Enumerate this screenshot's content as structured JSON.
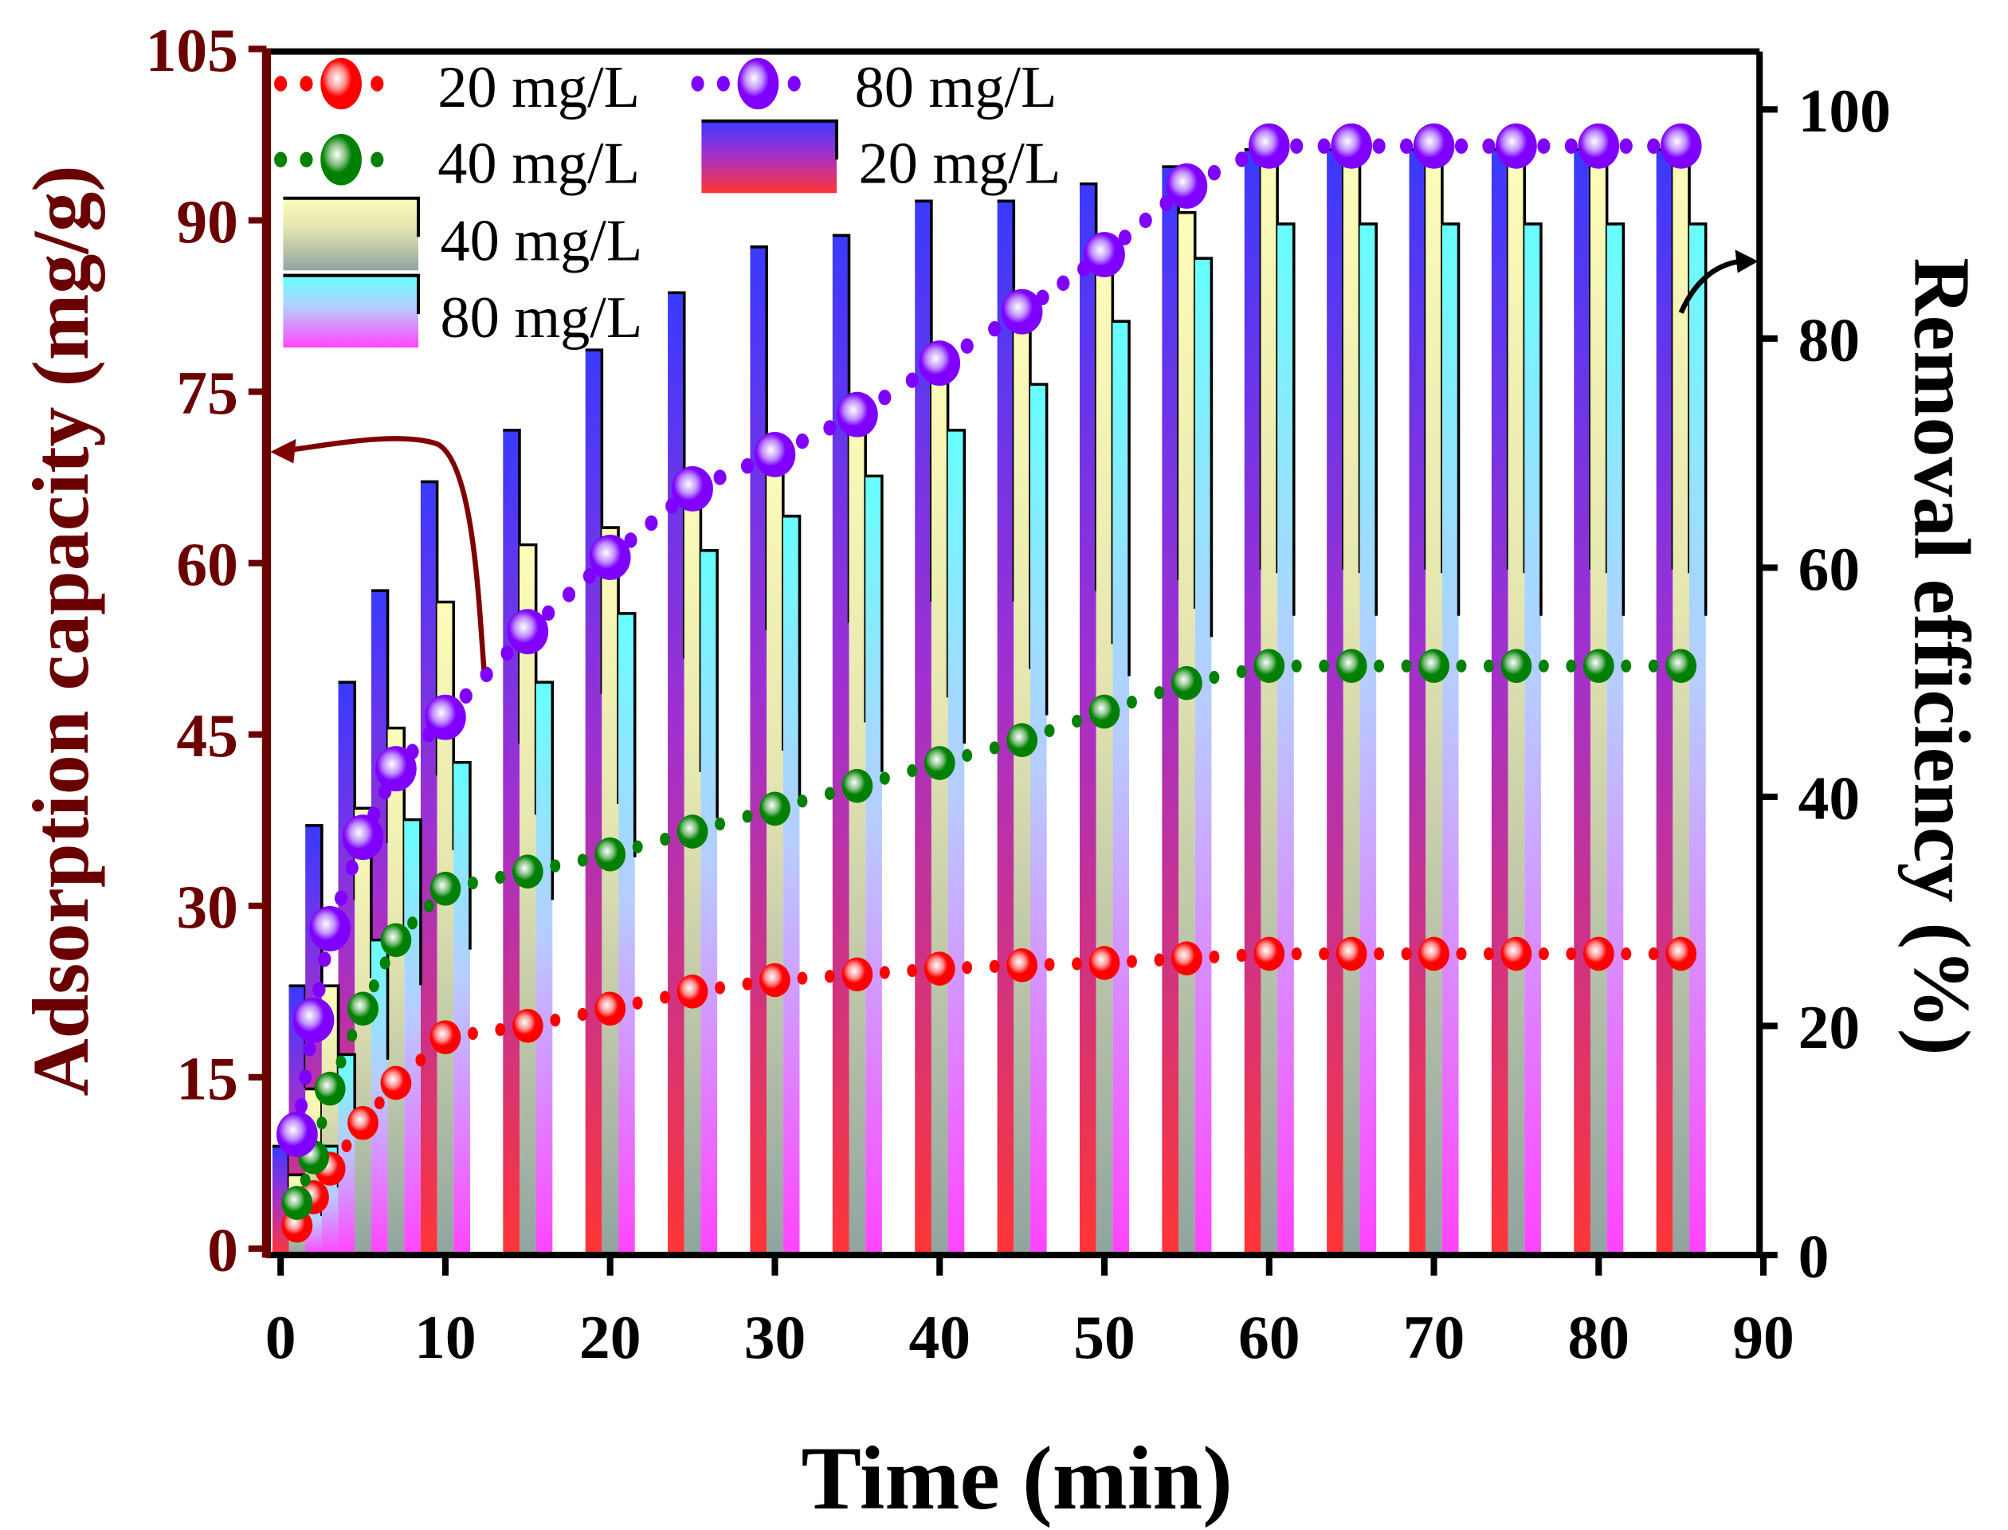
{
  "chart_data": {
    "type": "bar+scatter",
    "xlabel": "Time (min)",
    "ylabel_left": "Adsorption capacity (mg/g)",
    "ylabel_right": "Removal efficiency (%)",
    "xlim": [
      0,
      90
    ],
    "ylim_left": [
      0,
      105
    ],
    "ylim_right": [
      0,
      105
    ],
    "xticks": [
      0,
      10,
      20,
      30,
      40,
      50,
      60,
      70,
      80,
      90
    ],
    "yticks_left": [
      0,
      15,
      30,
      45,
      60,
      75,
      90,
      105
    ],
    "yticks_right": [
      0,
      20,
      40,
      60,
      80,
      100
    ],
    "x": [
      1,
      2,
      3,
      5,
      7,
      10,
      15,
      20,
      25,
      30,
      35,
      40,
      45,
      50,
      55,
      60,
      65,
      70,
      75,
      80,
      85
    ],
    "scatter_series": [
      {
        "name": "20 mg/L",
        "axis": "left",
        "color": "#ff0000",
        "values": [
          2,
          4.5,
          7,
          11,
          14.5,
          18.5,
          19.5,
          21,
          22.5,
          23.5,
          24,
          24.5,
          24.8,
          25,
          25.4,
          25.8,
          25.8,
          25.8,
          25.8,
          25.8,
          25.8
        ]
      },
      {
        "name": "40 mg/L",
        "axis": "left",
        "color": "#008000",
        "values": [
          4,
          8,
          14,
          21,
          27,
          31.5,
          33,
          34.5,
          36.5,
          38.5,
          40.5,
          42.5,
          44.5,
          47,
          49.5,
          51,
          51,
          51,
          51,
          51,
          51
        ]
      },
      {
        "name": "80 mg/L",
        "axis": "left",
        "color": "#8000ff",
        "values": [
          10,
          20,
          28,
          36,
          42,
          46.5,
          54,
          60.5,
          66.5,
          69.5,
          73,
          77.5,
          82,
          87,
          93,
          96.5,
          96.5,
          96.5,
          96.5,
          96.5,
          96.5
        ]
      }
    ],
    "bar_series": [
      {
        "name": "20 mg/L",
        "axis": "right",
        "gradient": [
          "#3a3aff",
          "#ff3535"
        ],
        "values": [
          9.5,
          23.5,
          37.5,
          50,
          58,
          67.5,
          72,
          79,
          84,
          88,
          89,
          92,
          92,
          93.5,
          95,
          96.5,
          96.5,
          96.5,
          96.5,
          96.5,
          96.5
        ]
      },
      {
        "name": "40 mg/L",
        "axis": "right",
        "gradient": [
          "#fdfcb8",
          "#90a4a0"
        ],
        "values": [
          7,
          14.5,
          23.5,
          39,
          46,
          57,
          62,
          63.5,
          68,
          71,
          75,
          78.5,
          82.5,
          86,
          91,
          96,
          96,
          96,
          96,
          96,
          96
        ]
      },
      {
        "name": "80 mg/L",
        "axis": "right",
        "gradient": [
          "#66ffff",
          "#ff44ff"
        ],
        "values": [
          5.5,
          9.5,
          17.5,
          27.5,
          38,
          43,
          50,
          56,
          61.5,
          64.5,
          68,
          72,
          76,
          81.5,
          87,
          90,
          90,
          90,
          90,
          90,
          90
        ]
      }
    ],
    "legend": {
      "placement": "top-left",
      "entries": [
        "20 mg/L",
        "40 mg/L",
        "40 mg/L",
        "80 mg/L",
        "80 mg/L",
        "20 mg/L"
      ]
    },
    "axis_color_left": "#6b0000",
    "axis_color_right": "#000000"
  }
}
